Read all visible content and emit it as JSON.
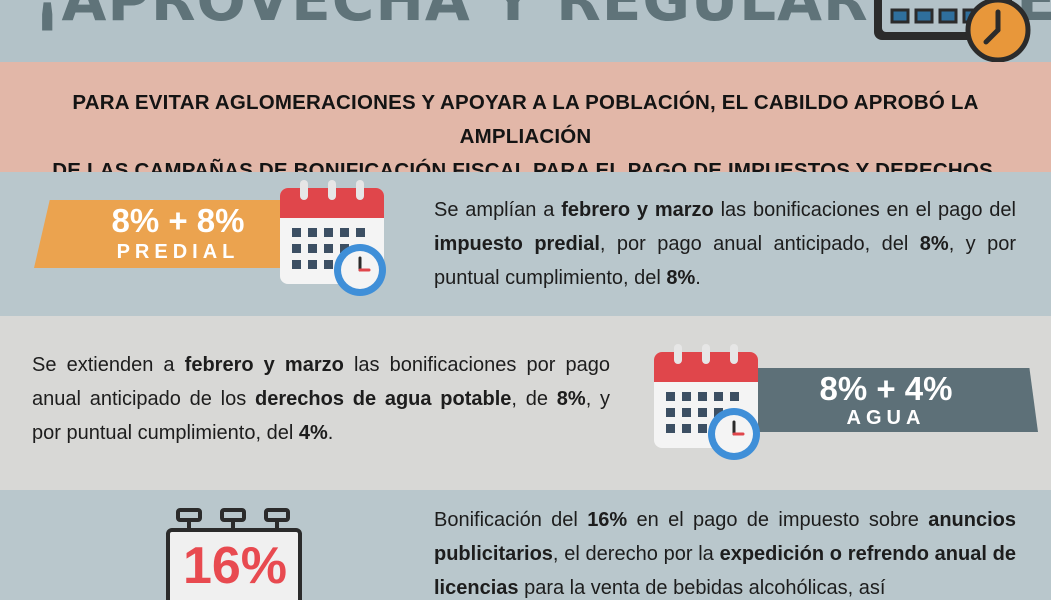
{
  "header": {
    "title": "¡APROVECHA Y REGULARÍZATE!"
  },
  "intro": {
    "line1": "PARA EVITAR AGLOMERACIONES Y APOYAR A LA POBLACIÓN, EL CABILDO APROBÓ LA AMPLIACIÓN",
    "line2": "DE LAS CAMPAÑAS DE BONIFICACIÓN FISCAL PARA EL PAGO DE IMPUESTOS Y DERECHOS."
  },
  "predial": {
    "percent": "8% + 8%",
    "label": "PREDIAL",
    "text": {
      "t1": "Se amplían a ",
      "b1": "febrero y marzo",
      "t2": " las bonificaciones en el pago del ",
      "b2": "impuesto predial",
      "t3": ", por pago anual anticipado, del ",
      "b3": "8%",
      "t4": ", y por puntual cumplimiento, del ",
      "b4": "8%",
      "t5": "."
    }
  },
  "agua": {
    "percent": "8% + 4%",
    "label": "AGUA",
    "text": {
      "t1": "Se extienden a ",
      "b1": "febrero y marzo",
      "t2": " las bonificaciones por pago anual anticipado de los ",
      "b2": "derechos de agua potable",
      "t3": ", de ",
      "b3": "8%",
      "t4": ", y por puntual cumplimiento, del ",
      "b4": "4%",
      "t5": "."
    }
  },
  "anuncios": {
    "percent": "16%",
    "text": {
      "t1": "Bonificación del ",
      "b1": "16%",
      "t2": " en el pago de impuesto sobre ",
      "b2": "anuncios publicitarios",
      "t3": ", el derecho por la ",
      "b3": "expedición o refrendo anual de licencias",
      "t4": " para la venta de bebidas alcohólicas, así"
    }
  },
  "colors": {
    "title": "#5f7379",
    "intro_band": "#e2b7a8",
    "predial_ribbon": "#eba34f",
    "agua_ribbon": "#5d7078",
    "calendar_red": "#e0464b",
    "clock_blue": "#3f8fd8",
    "clock_orange": "#e8973a",
    "anuncio_red": "#e84a50"
  },
  "icons": [
    "calendar-clock-icon",
    "signboard-icon"
  ]
}
